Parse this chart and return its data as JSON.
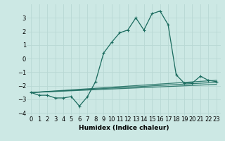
{
  "xlabel": "Humidex (Indice chaleur)",
  "ylabel": "",
  "xlim": [
    -0.5,
    23.5
  ],
  "ylim": [
    -4.2,
    4.0
  ],
  "bg_color": "#cce8e4",
  "grid_color": "#b8d8d4",
  "line_color": "#1a6b5e",
  "series_x": [
    0,
    1,
    2,
    3,
    4,
    5,
    6,
    7,
    8,
    9,
    10,
    11,
    12,
    13,
    14,
    15,
    16,
    17,
    18,
    19,
    20,
    21,
    22,
    23
  ],
  "series_y": [
    -2.5,
    -2.7,
    -2.7,
    -2.9,
    -2.9,
    -2.8,
    -3.5,
    -2.8,
    -1.7,
    0.4,
    1.2,
    1.9,
    2.1,
    3.0,
    2.1,
    3.3,
    3.5,
    2.5,
    -1.2,
    -1.8,
    -1.8,
    -1.3,
    -1.6,
    -1.7
  ],
  "flat_series": [
    {
      "x": [
        0,
        23
      ],
      "y": [
        -2.5,
        -1.6
      ]
    },
    {
      "x": [
        0,
        23
      ],
      "y": [
        -2.5,
        -1.75
      ]
    },
    {
      "x": [
        0,
        23
      ],
      "y": [
        -2.5,
        -1.9
      ]
    }
  ],
  "yticks": [
    -4,
    -3,
    -2,
    -1,
    0,
    1,
    2,
    3
  ],
  "xticks": [
    0,
    1,
    2,
    3,
    4,
    5,
    6,
    7,
    8,
    9,
    10,
    11,
    12,
    13,
    14,
    15,
    16,
    17,
    18,
    19,
    20,
    21,
    22,
    23
  ],
  "xlabel_fontsize": 6.5,
  "tick_fontsize": 6.0,
  "line_width": 0.9,
  "marker_size": 2.5
}
